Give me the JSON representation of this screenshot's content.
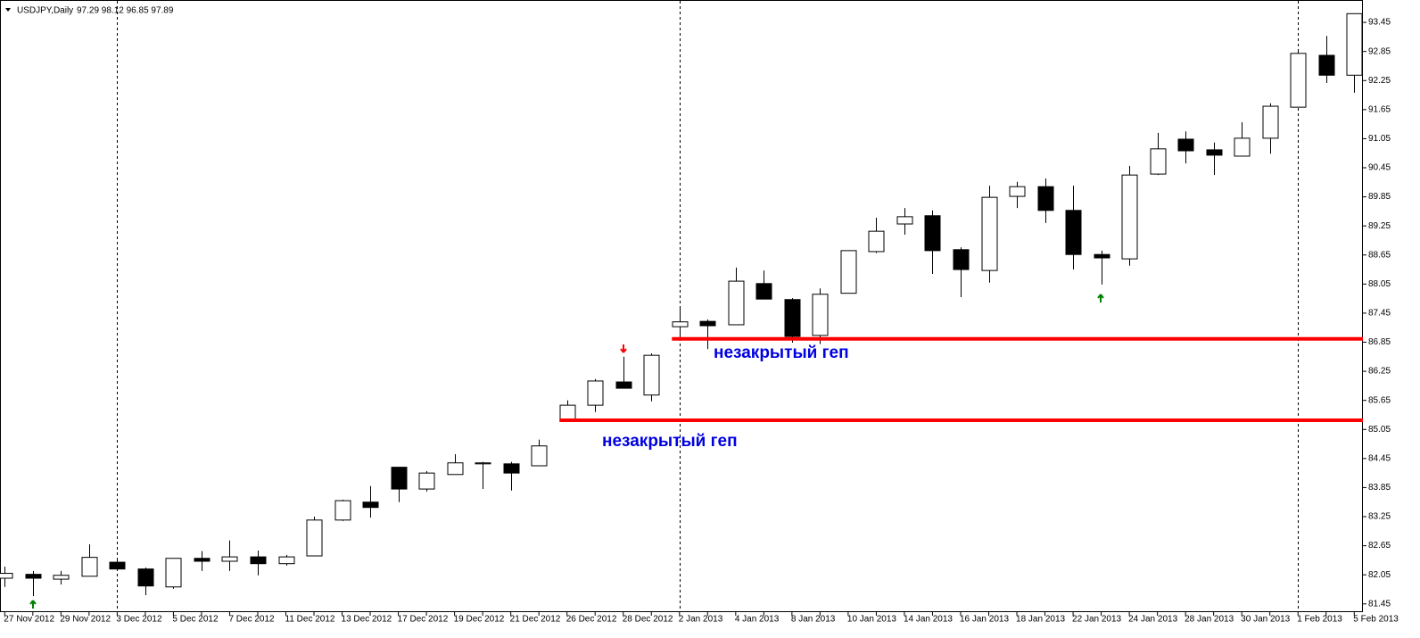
{
  "chart_data": {
    "type": "candlestick",
    "title": "USDJPY,Daily",
    "quote": "97.29 98.12 96.85 97.89",
    "categories": [
      "27 Nov 2012",
      null,
      "29 Nov 2012",
      null,
      "3 Dec 2012",
      null,
      "5 Dec 2012",
      null,
      "7 Dec 2012",
      null,
      "11 Dec 2012",
      null,
      "13 Dec 2012",
      null,
      "17 Dec 2012",
      null,
      "19 Dec 2012",
      null,
      "21 Dec 2012",
      null,
      "26 Dec 2012",
      null,
      "28 Dec 2012",
      null,
      "2 Jan 2013",
      null,
      "4 Jan 2013",
      null,
      "8 Jan 2013",
      null,
      "10 Jan 2013",
      null,
      "14 Jan 2013",
      null,
      "16 Jan 2013",
      null,
      "18 Jan 2013",
      null,
      "22 Jan 2013",
      null,
      "24 Jan 2013",
      null,
      "28 Jan 2013",
      null,
      "30 Jan 2013",
      null,
      "1 Feb 2013",
      null,
      "5 Feb 2013"
    ],
    "open": [
      81.98,
      82.06,
      81.96,
      82.02,
      82.31,
      82.17,
      81.8,
      82.39,
      82.33,
      82.42,
      82.28,
      82.44,
      83.18,
      83.55,
      84.27,
      83.82,
      84.12,
      84.34,
      84.34,
      84.3,
      85.24,
      85.55,
      86.03,
      85.76,
      87.17,
      87.28,
      87.21,
      88.06,
      87.73,
      86.99,
      87.86,
      88.72,
      89.29,
      89.46,
      88.76,
      88.33,
      89.86,
      90.06,
      89.57,
      88.66,
      88.57,
      90.32,
      91.04,
      90.82,
      90.69,
      91.06,
      91.7,
      92.77,
      92.36
    ],
    "high": [
      82.22,
      82.13,
      82.13,
      82.68,
      82.35,
      82.2,
      82.39,
      82.54,
      82.76,
      82.55,
      82.46,
      83.25,
      83.6,
      83.88,
      84.27,
      84.19,
      84.54,
      84.38,
      84.38,
      84.84,
      85.65,
      86.09,
      86.55,
      86.62,
      87.56,
      87.32,
      88.39,
      88.33,
      87.76,
      87.96,
      88.74,
      89.42,
      89.62,
      89.57,
      88.81,
      90.08,
      90.16,
      90.23,
      90.08,
      88.74,
      90.49,
      91.17,
      91.2,
      90.97,
      91.39,
      91.78,
      92.9,
      93.17,
      93.63
    ],
    "low": [
      81.8,
      81.61,
      81.85,
      82.02,
      82.13,
      81.63,
      81.76,
      82.13,
      82.13,
      82.04,
      82.24,
      82.44,
      83.16,
      83.23,
      83.55,
      83.77,
      84.12,
      83.82,
      83.79,
      84.3,
      85.24,
      85.41,
      85.9,
      85.63,
      86.9,
      86.71,
      87.21,
      87.74,
      86.84,
      86.81,
      87.86,
      88.69,
      89.07,
      88.26,
      87.78,
      88.08,
      89.62,
      89.31,
      88.35,
      88.04,
      88.43,
      90.3,
      90.54,
      90.3,
      90.69,
      90.74,
      91.7,
      92.2,
      92.0
    ],
    "close": [
      82.08,
      81.98,
      82.04,
      82.41,
      82.17,
      81.82,
      82.39,
      82.33,
      82.42,
      82.28,
      82.42,
      83.18,
      83.58,
      83.44,
      83.82,
      84.15,
      84.36,
      84.36,
      84.15,
      84.71,
      85.55,
      86.05,
      85.9,
      86.58,
      87.27,
      87.19,
      88.11,
      87.74,
      86.97,
      87.84,
      88.74,
      89.14,
      89.44,
      88.74,
      88.35,
      89.84,
      90.06,
      89.57,
      88.66,
      88.59,
      90.3,
      90.84,
      90.8,
      90.71,
      91.06,
      91.72,
      92.81,
      92.36,
      93.63
    ],
    "up_color": "#ffffff",
    "down_color": "#000000",
    "ylim": [
      81.28,
      93.82
    ],
    "yticks": [
      81.45,
      82.05,
      82.65,
      83.25,
      83.85,
      84.45,
      85.05,
      85.65,
      86.25,
      86.85,
      87.45,
      88.05,
      88.65,
      89.25,
      89.85,
      90.45,
      91.05,
      91.65,
      92.25,
      92.85,
      93.45
    ],
    "levels": [
      {
        "value": 86.92,
        "start": 24,
        "color": "#ff0000"
      },
      {
        "value": 85.24,
        "start": 20,
        "color": "#ff0000"
      }
    ],
    "annotations": [
      {
        "text": "незакрытый геп",
        "color": "#0000e0"
      },
      {
        "text": "незакрытый геп",
        "color": "#0000e0"
      }
    ]
  }
}
